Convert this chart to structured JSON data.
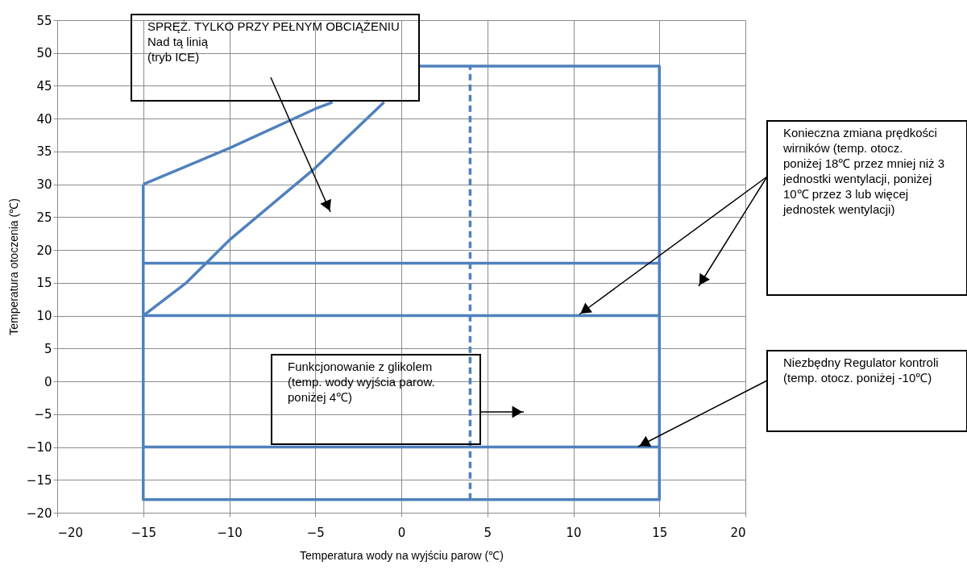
{
  "chart_data": {
    "type": "line",
    "xlabel": "Temperatura wody na wyjściu parow (℃)",
    "ylabel": "Temperatura otoczenia (℃)",
    "xlim": [
      -20,
      20
    ],
    "xticks": [
      -20,
      -15,
      -10,
      -5,
      0,
      5,
      10,
      15,
      20
    ],
    "ylim": [
      -20,
      55
    ],
    "yticks": [
      -20,
      -15,
      -10,
      -5,
      0,
      5,
      10,
      15,
      20,
      25,
      30,
      35,
      40,
      45,
      50,
      55
    ],
    "grid": true,
    "marker": "none",
    "series": [
      {
        "color": "#4f81bd",
        "x": [
          -15,
          -10,
          -5,
          -4
        ],
        "values": [
          30,
          35.5,
          41.5,
          42.5
        ]
      },
      {
        "color": "#4f81bd",
        "x": [
          -15,
          -12.5,
          -10,
          -5,
          -1
        ],
        "values": [
          10,
          15,
          21.5,
          32.5,
          42.5
        ]
      },
      {
        "color": "#4f81bd",
        "x": [
          -15,
          -15,
          15,
          15,
          1
        ],
        "values": [
          30,
          -18,
          -18,
          48,
          48
        ]
      },
      {
        "color": "#4f81bd",
        "x": [
          -15,
          15
        ],
        "values": [
          18,
          18
        ]
      },
      {
        "color": "#4f81bd",
        "x": [
          -15,
          15
        ],
        "values": [
          10,
          10
        ]
      },
      {
        "color": "#4f81bd",
        "x": [
          -15,
          15
        ],
        "values": [
          -10,
          -10
        ]
      },
      {
        "color": "#4f81bd",
        "x": [
          4,
          4
        ],
        "values": [
          -18,
          48
        ],
        "line_style": "dashed"
      }
    ],
    "annotations": [
      "SPRĘŻ. TYLKO PRZY PEŁNYM OBCIĄŻENIU\nNad tą linią\n(tryb ICE)",
      "Funkcjonowanie z glikolem (temp. wody wyjścia parow. poniżej 4℃)",
      "Konieczna zmiana prędkości wirników (temp. otocz. poniżej 18℃ przez mniej niż 3 jednostki wentylacji, poniżej 10℃ przez 3 lub więcej jednostek wentylacji)",
      "Niezbędny Regulator kontroli (temp. otocz. poniżej -10℃)"
    ]
  }
}
